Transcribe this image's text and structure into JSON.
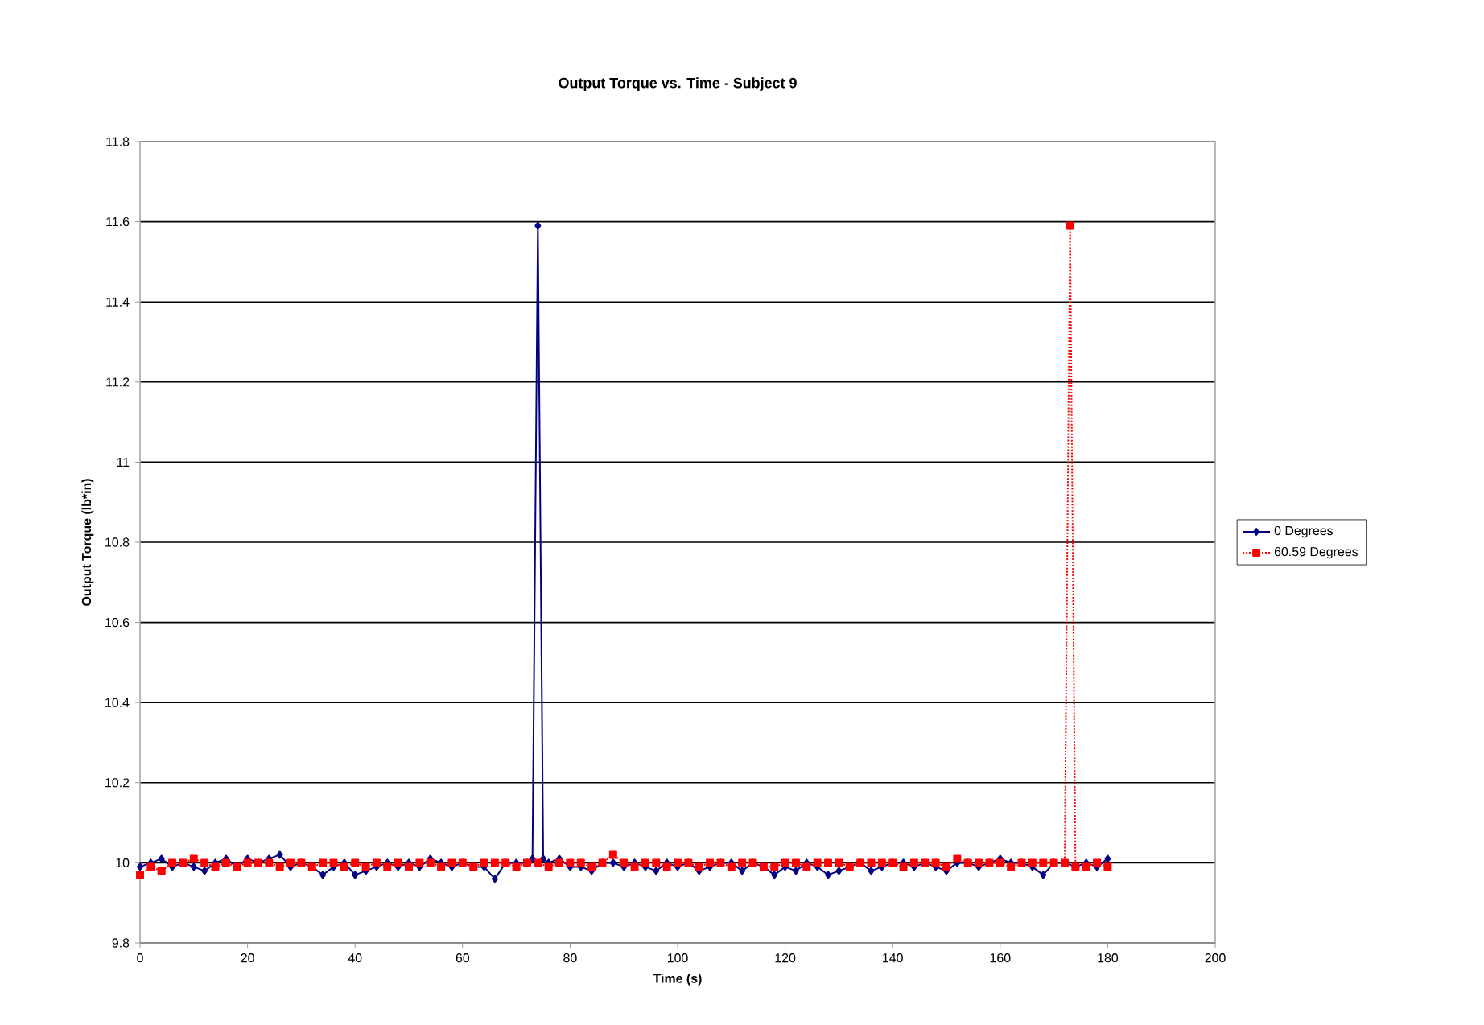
{
  "chart_data": {
    "type": "line",
    "title": "Output Torque vs. Time - Subject 9",
    "xlabel": "Time (s)",
    "ylabel": "Output Torque (lb*in)",
    "xlim": [
      0,
      200
    ],
    "xticks": [
      0,
      20,
      40,
      60,
      80,
      100,
      120,
      140,
      160,
      180,
      200
    ],
    "ylim": [
      9.8,
      11.8
    ],
    "yticks": [
      9.8,
      10,
      10.2,
      10.4,
      10.6,
      10.8,
      11,
      11.2,
      11.4,
      11.6,
      11.8
    ],
    "grid": "y",
    "legend": "right",
    "series": [
      {
        "name": "0 Degrees",
        "color": "#000080",
        "marker": "diamond",
        "line_style": "solid",
        "x": [
          0,
          2,
          4,
          6,
          8,
          10,
          12,
          14,
          16,
          18,
          20,
          22,
          24,
          26,
          28,
          30,
          32,
          34,
          36,
          38,
          40,
          42,
          44,
          46,
          48,
          50,
          52,
          54,
          56,
          58,
          60,
          62,
          64,
          66,
          68,
          70,
          72,
          73,
          74,
          75,
          76,
          78,
          80,
          82,
          84,
          86,
          88,
          90,
          92,
          94,
          96,
          98,
          100,
          102,
          104,
          106,
          108,
          110,
          112,
          114,
          116,
          118,
          120,
          122,
          124,
          126,
          128,
          130,
          132,
          134,
          136,
          138,
          140,
          142,
          144,
          146,
          148,
          150,
          152,
          154,
          156,
          158,
          160,
          162,
          164,
          166,
          168,
          170,
          172,
          174,
          176,
          178,
          180
        ],
        "values": [
          9.99,
          10.0,
          10.01,
          9.99,
          10.0,
          9.99,
          9.98,
          10.0,
          10.01,
          9.99,
          10.01,
          10.0,
          10.01,
          10.02,
          9.99,
          10.0,
          9.99,
          9.97,
          9.99,
          10.0,
          9.97,
          9.98,
          9.99,
          10.0,
          9.99,
          10.0,
          9.99,
          10.01,
          10.0,
          9.99,
          10.0,
          9.99,
          9.99,
          9.96,
          10.0,
          10.0,
          10.0,
          10.01,
          11.59,
          10.01,
          10.0,
          10.01,
          9.99,
          9.99,
          9.98,
          10.0,
          10.0,
          9.99,
          10.0,
          9.99,
          9.98,
          10.0,
          9.99,
          10.0,
          9.98,
          9.99,
          10.0,
          10.0,
          9.98,
          10.0,
          9.99,
          9.97,
          9.99,
          9.98,
          10.0,
          9.99,
          9.97,
          9.98,
          9.99,
          10.0,
          9.98,
          9.99,
          10.0,
          10.0,
          9.99,
          10.0,
          9.99,
          9.98,
          10.0,
          10.0,
          9.99,
          10.0,
          10.01,
          10.0,
          10.0,
          9.99,
          9.97,
          10.0,
          10.0,
          9.99,
          10.0,
          9.99,
          10.01
        ]
      },
      {
        "name": "60.59 Degrees",
        "color": "#ff0000",
        "marker": "square",
        "line_style": "dotted",
        "x": [
          0,
          2,
          4,
          6,
          8,
          10,
          12,
          14,
          16,
          18,
          20,
          22,
          24,
          26,
          28,
          30,
          32,
          34,
          36,
          38,
          40,
          42,
          44,
          46,
          48,
          50,
          52,
          54,
          56,
          58,
          60,
          62,
          64,
          66,
          68,
          70,
          72,
          74,
          76,
          78,
          80,
          82,
          84,
          86,
          88,
          90,
          92,
          94,
          96,
          98,
          100,
          102,
          104,
          106,
          108,
          110,
          112,
          114,
          116,
          118,
          120,
          122,
          124,
          126,
          128,
          130,
          132,
          134,
          136,
          138,
          140,
          142,
          144,
          146,
          148,
          150,
          152,
          154,
          156,
          158,
          160,
          162,
          164,
          166,
          168,
          170,
          172,
          173,
          174,
          176,
          178,
          180
        ],
        "values": [
          9.97,
          9.99,
          9.98,
          10.0,
          10.0,
          10.01,
          10.0,
          9.99,
          10.0,
          9.99,
          10.0,
          10.0,
          10.0,
          9.99,
          10.0,
          10.0,
          9.99,
          10.0,
          10.0,
          9.99,
          10.0,
          9.99,
          10.0,
          9.99,
          10.0,
          9.99,
          10.0,
          10.0,
          9.99,
          10.0,
          10.0,
          9.99,
          10.0,
          10.0,
          10.0,
          9.99,
          10.0,
          10.0,
          9.99,
          10.0,
          10.0,
          10.0,
          9.99,
          10.0,
          10.02,
          10.0,
          9.99,
          10.0,
          10.0,
          9.99,
          10.0,
          10.0,
          9.99,
          10.0,
          10.0,
          9.99,
          10.0,
          10.0,
          9.99,
          9.99,
          10.0,
          10.0,
          9.99,
          10.0,
          10.0,
          10.0,
          9.99,
          10.0,
          10.0,
          10.0,
          10.0,
          9.99,
          10.0,
          10.0,
          10.0,
          9.99,
          10.01,
          10.0,
          10.0,
          10.0,
          10.0,
          9.99,
          10.0,
          10.0,
          10.0,
          10.0,
          10.0,
          11.59,
          9.99,
          9.99,
          10.0,
          9.99
        ]
      }
    ]
  }
}
